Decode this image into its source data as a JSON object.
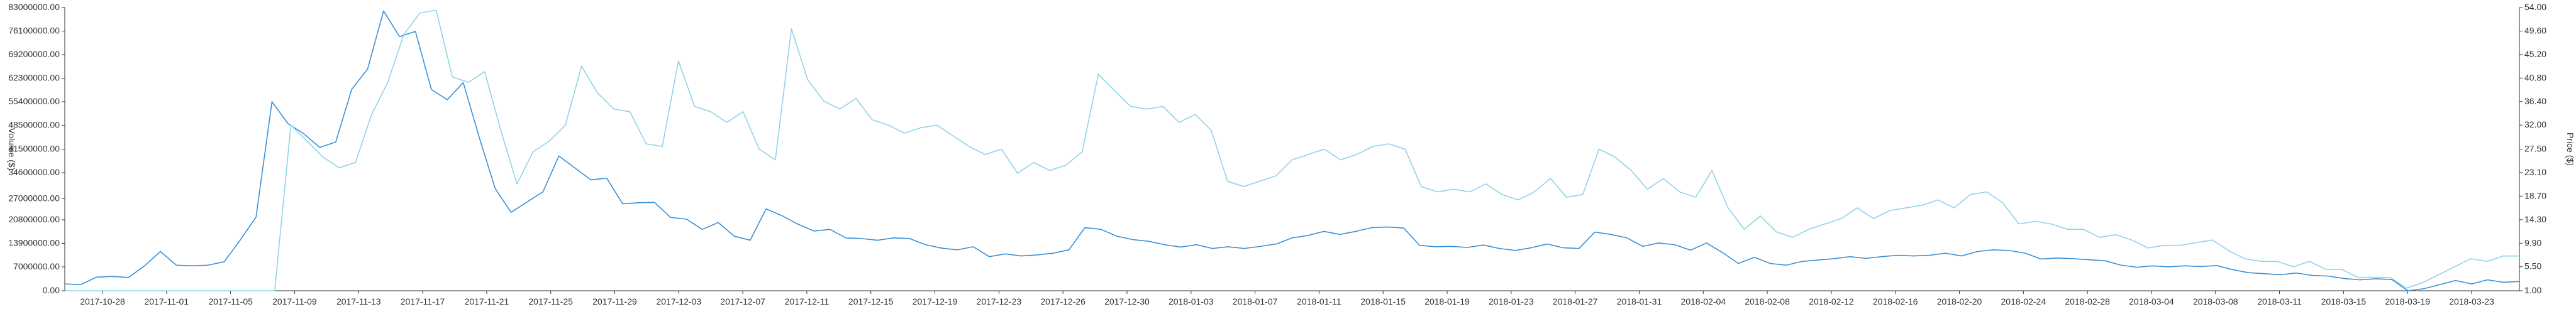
{
  "chart_data": {
    "type": "line",
    "title": "",
    "ylabel_left": "Volume ($)",
    "ylabel_right": "Price ($)",
    "colors": {
      "series_a": "#3a8fd6",
      "series_b": "#8fd3e8",
      "axis": "#333333"
    },
    "left_axis": {
      "min": 0,
      "max": 83000000,
      "ticks": [
        0,
        7000000,
        13900000,
        20800000,
        27000000,
        34600000,
        41500000,
        48500000,
        55400000,
        62300000,
        69200000,
        76100000,
        83000000
      ],
      "tick_labels": [
        "0.00",
        "7000000.00",
        "13900000.00",
        "20800000.00",
        "27000000.00",
        "34600000.00",
        "41500000.00",
        "48500000.00",
        "55400000.00",
        "62300000.00",
        "69200000.00",
        "76100000.00",
        "83000000.00"
      ]
    },
    "right_axis": {
      "min": 1.0,
      "max": 54.0,
      "ticks": [
        1.0,
        5.5,
        9.9,
        14.3,
        18.7,
        23.1,
        27.5,
        32.0,
        36.4,
        40.8,
        45.2,
        49.6,
        54.0
      ],
      "tick_labels": [
        "1.00",
        "5.50",
        "9.90",
        "14.30",
        "18.70",
        "23.10",
        "27.50",
        "32.00",
        "36.40",
        "40.80",
        "45.20",
        "49.60",
        "54.00"
      ]
    },
    "x_tick_labels": [
      "2017-10-28",
      "2017-11-01",
      "2017-11-05",
      "2017-11-09",
      "2017-11-13",
      "2017-11-17",
      "2017-11-21",
      "2017-11-25",
      "2017-11-29",
      "2017-12-03",
      "2017-12-07",
      "2017-12-11",
      "2017-12-15",
      "2017-12-19",
      "2017-12-23",
      "2017-12-26",
      "2017-12-30",
      "2018-01-03",
      "2018-01-07",
      "2018-01-11",
      "2018-01-15",
      "2018-01-19",
      "2018-01-23",
      "2018-01-27",
      "2018-01-31",
      "2018-02-04",
      "2018-02-08",
      "2018-02-12",
      "2018-02-16",
      "2018-02-20",
      "2018-02-24",
      "2018-02-28",
      "2018-03-04",
      "2018-03-08",
      "2018-03-11",
      "2018-03-15",
      "2018-03-19",
      "2018-03-23"
    ],
    "series": [
      {
        "name": "",
        "axis": "left",
        "values": [
          2000000,
          1800000,
          4000000,
          4200000,
          3900000,
          7300000,
          11500000,
          7500000,
          7300000,
          7500000,
          8500000,
          14800000,
          21600000,
          55400000,
          49000000,
          46000000,
          42000000,
          43600000,
          59000000,
          65000000,
          82000000,
          74500000,
          76000000,
          59000000,
          56000000,
          61000000,
          45000000,
          30000000,
          23000000,
          26000000,
          29000000,
          39500000,
          36000000,
          32500000,
          33000000,
          25500000,
          25800000,
          25900000,
          21500000,
          21000000,
          18000000,
          20000000,
          16000000,
          14800000,
          24000000,
          22000000,
          19500000,
          17500000,
          18000000,
          15500000,
          15300000,
          14800000,
          15500000,
          15300000,
          13500000,
          12500000,
          12000000,
          12900000,
          10000000,
          10800000,
          10200000,
          10500000,
          11000000,
          12000000,
          18500000,
          18000000,
          16000000,
          15000000,
          14500000,
          13500000,
          12800000,
          13500000,
          12400000,
          12900000,
          12400000,
          13000000,
          13700000,
          15500000,
          16200000,
          17400000,
          16500000,
          17400000,
          18500000,
          18700000,
          18400000,
          13300000,
          12900000,
          13000000,
          12700000,
          13400000,
          12400000,
          11800000,
          12600000,
          13700000,
          12600000,
          12400000,
          17200000,
          16500000,
          15500000,
          13000000,
          14000000,
          13500000,
          11900000,
          14000000,
          11200000,
          8000000,
          9800000,
          8000000,
          7500000,
          8600000,
          9000000,
          9400000,
          10000000,
          9500000,
          10000000,
          10400000,
          10200000,
          10400000,
          11000000,
          10200000,
          11500000,
          12000000,
          11800000,
          11000000,
          9300000,
          9600000,
          9400000,
          9100000,
          8800000,
          7500000,
          6900000,
          7300000,
          7000000,
          7300000,
          7100000,
          7400000,
          6200000,
          5300000,
          5000000,
          4700000,
          5200000,
          4500000,
          4300000,
          3600000,
          3200000,
          3500000,
          3300000,
          0,
          600000,
          1800000,
          3000000,
          2000000,
          3200000,
          2500000,
          2700000
        ]
      },
      {
        "name": "",
        "axis": "right",
        "values": [
          0,
          0,
          0,
          0,
          0,
          0,
          0,
          0,
          0,
          0,
          0,
          0,
          0,
          1.0,
          32,
          29,
          26,
          24,
          25,
          34,
          40,
          49,
          53,
          53.5,
          41,
          40,
          42,
          31,
          21,
          27,
          29,
          32,
          43,
          38,
          35,
          34.5,
          28.5,
          28,
          44,
          35.5,
          34.5,
          32.5,
          34.5,
          27.5,
          25.5,
          50,
          40.5,
          36.5,
          35,
          37,
          33,
          32,
          30.5,
          31.5,
          32,
          30,
          28,
          26.5,
          27.5,
          23,
          25,
          23.5,
          24.5,
          27,
          41.5,
          38.5,
          35.5,
          35,
          35.5,
          32.5,
          34,
          31,
          21.5,
          20.5,
          21.5,
          22.5,
          25.5,
          26.5,
          27.5,
          25.5,
          26.5,
          28,
          28.5,
          27.5,
          20.5,
          19.5,
          20,
          19.5,
          21,
          19,
          18,
          19.5,
          22,
          18.5,
          19,
          27.5,
          26,
          23.5,
          20,
          22,
          19.5,
          18.5,
          23.5,
          16.5,
          12.5,
          15,
          12,
          11,
          12.5,
          13.5,
          14.5,
          16.5,
          14.5,
          16,
          16.5,
          17,
          18,
          16.5,
          19,
          19.5,
          17.5,
          13.5,
          14,
          13.5,
          12.5,
          12.5,
          11,
          11.5,
          10.5,
          9,
          9.5,
          9.5,
          10,
          10.5,
          8.5,
          7,
          6.5,
          6.5,
          5.5,
          6.5,
          5,
          5,
          3.5,
          3.5,
          3.5,
          1.5,
          2.5,
          4,
          5.5,
          7,
          6.5,
          7.5,
          7.5
        ]
      }
    ],
    "grid": false,
    "legend": "none"
  }
}
